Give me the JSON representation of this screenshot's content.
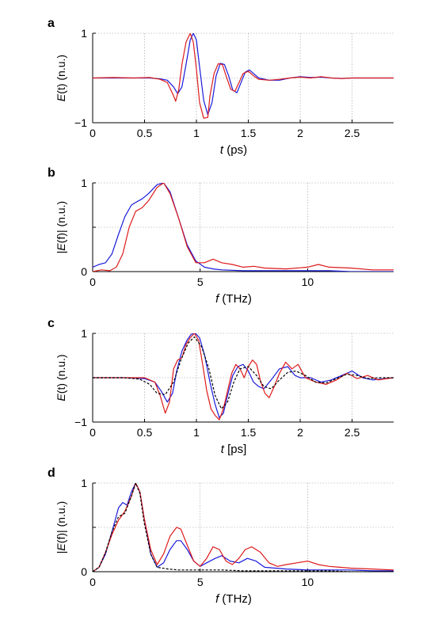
{
  "chart_data": [
    {
      "panel": "a",
      "type": "line",
      "xlabel_pre": "",
      "xlabel_var": "t",
      "xlabel_post": " (ps)",
      "ylabel_pre": "",
      "ylabel_var": "E",
      "ylabel_post": "(t) (n.u.)",
      "xlim": [
        0,
        2.9
      ],
      "ylim": [
        -1,
        1
      ],
      "xticks": [
        0,
        0.5,
        1,
        1.5,
        2,
        2.5
      ],
      "xtick_labels": [
        "0",
        "0.5",
        "1",
        "1.5",
        "2",
        "2.5"
      ],
      "yticks": [
        -1,
        0,
        1
      ],
      "ytick_labels": [
        "−1",
        "",
        "1"
      ],
      "grid": true,
      "series": [
        {
          "color": "#1a1adb",
          "dash": "",
          "x": [
            0,
            0.2,
            0.4,
            0.55,
            0.65,
            0.72,
            0.78,
            0.82,
            0.86,
            0.9,
            0.94,
            0.97,
            1.0,
            1.03,
            1.07,
            1.11,
            1.15,
            1.19,
            1.23,
            1.27,
            1.31,
            1.35,
            1.39,
            1.43,
            1.47,
            1.51,
            1.55,
            1.6,
            1.7,
            1.8,
            1.9,
            2.0,
            2.1,
            2.2,
            2.3,
            2.4,
            2.5,
            2.6,
            2.7,
            2.9
          ],
          "y": [
            0,
            0,
            0,
            0,
            -0.02,
            -0.05,
            -0.2,
            -0.35,
            -0.2,
            0.3,
            0.85,
            1.0,
            0.85,
            0.25,
            -0.5,
            -0.82,
            -0.55,
            0.05,
            0.33,
            0.3,
            0.05,
            -0.27,
            -0.33,
            -0.1,
            0.13,
            0.18,
            0.1,
            0.0,
            -0.05,
            -0.05,
            0.0,
            0.03,
            0.01,
            0.02,
            0.0,
            -0.01,
            0.0,
            0.0,
            0.0,
            0.0
          ]
        },
        {
          "color": "#dd1a1a",
          "dash": "",
          "x": [
            0,
            0.2,
            0.4,
            0.55,
            0.65,
            0.72,
            0.78,
            0.8,
            0.83,
            0.86,
            0.9,
            0.94,
            0.97,
            1.0,
            1.03,
            1.07,
            1.11,
            1.13,
            1.17,
            1.21,
            1.25,
            1.29,
            1.33,
            1.37,
            1.41,
            1.45,
            1.5,
            1.55,
            1.6,
            1.7,
            1.8,
            1.9,
            2.0,
            2.1,
            2.2,
            2.3,
            2.4,
            2.5,
            2.6,
            2.7,
            2.9
          ],
          "y": [
            0,
            0.01,
            0,
            0.01,
            -0.03,
            -0.1,
            -0.4,
            -0.52,
            -0.25,
            0.3,
            0.8,
            1.0,
            0.8,
            0.2,
            -0.55,
            -0.9,
            -0.88,
            -0.4,
            0.1,
            0.32,
            0.3,
            0.02,
            -0.25,
            -0.3,
            -0.1,
            0.1,
            0.15,
            0.05,
            -0.03,
            -0.05,
            -0.03,
            0.0,
            0.02,
            0.0,
            0.03,
            0.0,
            -0.01,
            0.0,
            0.0,
            0.0,
            0.0
          ]
        }
      ]
    },
    {
      "panel": "b",
      "type": "line",
      "xlabel_pre": "",
      "xlabel_var": "f",
      "xlabel_post": " (THz)",
      "ylabel_pre": "|",
      "ylabel_var": "E",
      "ylabel_post": "(f)| (n.u.)",
      "xlim": [
        0,
        14
      ],
      "ylim": [
        0,
        1
      ],
      "xticks": [
        0,
        5,
        10
      ],
      "xtick_labels": [
        "0",
        "5",
        "10"
      ],
      "yticks": [
        0,
        0.5,
        1
      ],
      "ytick_labels": [
        "0",
        "",
        "1"
      ],
      "grid": true,
      "series": [
        {
          "color": "#1a1adb",
          "dash": "",
          "x": [
            0,
            0.3,
            0.6,
            0.9,
            1.2,
            1.5,
            1.8,
            2.0,
            2.3,
            2.6,
            3.0,
            3.3,
            3.6,
            4.0,
            4.4,
            4.8,
            5.2,
            5.6,
            6.0,
            7,
            8,
            9,
            10,
            11,
            12,
            13,
            14
          ],
          "y": [
            0.05,
            0.08,
            0.1,
            0.2,
            0.42,
            0.62,
            0.75,
            0.78,
            0.82,
            0.88,
            0.98,
            1.0,
            0.9,
            0.6,
            0.3,
            0.12,
            0.05,
            0.03,
            0.02,
            0.01,
            0.01,
            0.01,
            0.01,
            0.01,
            0.0,
            0.0,
            0.0
          ]
        },
        {
          "color": "#dd1a1a",
          "dash": "",
          "x": [
            0,
            0.4,
            0.8,
            1.1,
            1.4,
            1.7,
            2.0,
            2.3,
            2.6,
            3.0,
            3.3,
            3.6,
            4.0,
            4.4,
            4.8,
            5.2,
            5.6,
            6.0,
            6.5,
            7,
            7.5,
            8,
            9,
            10,
            10.5,
            11,
            12,
            13,
            14
          ],
          "y": [
            0.0,
            0.02,
            0.01,
            0.05,
            0.2,
            0.5,
            0.68,
            0.72,
            0.8,
            0.95,
            1.0,
            0.88,
            0.6,
            0.28,
            0.1,
            0.1,
            0.14,
            0.1,
            0.08,
            0.05,
            0.06,
            0.04,
            0.03,
            0.05,
            0.08,
            0.05,
            0.04,
            0.02,
            0.02
          ]
        }
      ]
    },
    {
      "panel": "c",
      "type": "line",
      "xlabel_pre": "",
      "xlabel_var": "t",
      "xlabel_post": " [ps]",
      "ylabel_pre": "",
      "ylabel_var": "E",
      "ylabel_post": "(t) (n.u.)",
      "xlim": [
        0,
        2.9
      ],
      "ylim": [
        -1,
        1
      ],
      "xticks": [
        0,
        0.5,
        1,
        1.5,
        2,
        2.5
      ],
      "xtick_labels": [
        "0",
        "0.5",
        "1",
        "1.5",
        "2",
        "2.5"
      ],
      "yticks": [
        -1,
        0,
        1
      ],
      "ytick_labels": [
        "−1",
        "",
        "1"
      ],
      "grid": true,
      "series": [
        {
          "color": "#1a1adb",
          "dash": "",
          "x": [
            0,
            0.3,
            0.5,
            0.6,
            0.66,
            0.72,
            0.77,
            0.81,
            0.86,
            0.91,
            0.95,
            0.99,
            1.03,
            1.08,
            1.13,
            1.18,
            1.22,
            1.26,
            1.3,
            1.35,
            1.4,
            1.45,
            1.5,
            1.55,
            1.6,
            1.65,
            1.72,
            1.8,
            1.88,
            1.95,
            2.0,
            2.1,
            2.2,
            2.3,
            2.4,
            2.5,
            2.6,
            2.7,
            2.9
          ],
          "y": [
            0,
            0,
            -0.02,
            -0.1,
            -0.3,
            -0.55,
            -0.35,
            0.15,
            0.6,
            0.85,
            0.98,
            1.0,
            0.9,
            0.5,
            -0.1,
            -0.6,
            -0.9,
            -0.8,
            -0.4,
            0.05,
            0.25,
            0.3,
            0.15,
            -0.1,
            -0.2,
            -0.25,
            -0.05,
            0.2,
            0.25,
            0.05,
            0.0,
            0.0,
            -0.1,
            -0.05,
            0.05,
            0.15,
            0.0,
            -0.05,
            0.0
          ]
        },
        {
          "color": "#dd1a1a",
          "dash": "",
          "x": [
            0,
            0.3,
            0.5,
            0.6,
            0.65,
            0.7,
            0.74,
            0.78,
            0.82,
            0.86,
            0.9,
            0.94,
            0.98,
            1.02,
            1.06,
            1.1,
            1.14,
            1.18,
            1.22,
            1.26,
            1.3,
            1.34,
            1.38,
            1.42,
            1.46,
            1.5,
            1.54,
            1.58,
            1.62,
            1.66,
            1.7,
            1.75,
            1.8,
            1.86,
            1.92,
            1.98,
            2.05,
            2.15,
            2.25,
            2.35,
            2.45,
            2.55,
            2.65,
            2.75,
            2.9
          ],
          "y": [
            0,
            0,
            0,
            -0.1,
            -0.4,
            -0.8,
            -0.55,
            0.2,
            0.4,
            0.45,
            0.75,
            0.9,
            1.0,
            0.85,
            0.3,
            -0.3,
            -0.7,
            -0.85,
            -0.95,
            -0.7,
            -0.3,
            0.1,
            0.3,
            0.2,
            0.0,
            0.25,
            0.4,
            0.3,
            -0.1,
            -0.35,
            -0.45,
            -0.2,
            0.1,
            0.35,
            0.2,
            0.3,
            0.0,
            -0.1,
            -0.15,
            -0.05,
            0.1,
            -0.02,
            0.05,
            -0.05,
            0.0
          ]
        },
        {
          "color": "#000000",
          "dash": "3,2",
          "x": [
            0,
            0.3,
            0.45,
            0.55,
            0.62,
            0.7,
            0.78,
            0.85,
            0.92,
            0.98,
            1.05,
            1.12,
            1.18,
            1.24,
            1.3,
            1.36,
            1.42,
            1.5,
            1.58,
            1.65,
            1.72,
            1.8,
            1.88,
            1.96,
            2.05,
            2.15,
            2.25,
            2.35,
            2.45,
            2.55,
            2.65,
            2.75,
            2.9
          ],
          "y": [
            0,
            0,
            -0.03,
            -0.15,
            -0.35,
            -0.38,
            -0.1,
            0.4,
            0.78,
            0.92,
            0.7,
            0.2,
            -0.4,
            -0.7,
            -0.55,
            -0.1,
            0.2,
            0.25,
            0.05,
            -0.2,
            -0.25,
            -0.05,
            0.12,
            0.15,
            0.05,
            -0.1,
            -0.12,
            -0.02,
            0.08,
            0.05,
            -0.02,
            0.0,
            0.0
          ]
        }
      ]
    },
    {
      "panel": "d",
      "type": "line",
      "xlabel_pre": "",
      "xlabel_var": "f",
      "xlabel_post": " (THz)",
      "ylabel_pre": "|",
      "ylabel_var": "E",
      "ylabel_post": "(f)| (n.u.)",
      "xlim": [
        0,
        14
      ],
      "ylim": [
        0,
        1
      ],
      "xticks": [
        0,
        5,
        10
      ],
      "xtick_labels": [
        "0",
        "5",
        "10"
      ],
      "yticks": [
        0,
        0.5,
        1
      ],
      "ytick_labels": [
        "0",
        "",
        "1"
      ],
      "grid": true,
      "series": [
        {
          "color": "#1a1adb",
          "dash": "",
          "x": [
            0,
            0.3,
            0.6,
            0.9,
            1.2,
            1.4,
            1.6,
            1.8,
            2.0,
            2.2,
            2.4,
            2.7,
            3.0,
            3.3,
            3.6,
            3.9,
            4.1,
            4.4,
            4.7,
            5.0,
            5.3,
            5.7,
            6.0,
            6.4,
            6.8,
            7.2,
            7.6,
            8,
            9,
            10,
            11,
            12,
            13,
            14
          ],
          "y": [
            0,
            0.05,
            0.2,
            0.45,
            0.72,
            0.78,
            0.75,
            0.9,
            1.0,
            0.9,
            0.6,
            0.2,
            0.05,
            0.1,
            0.25,
            0.35,
            0.35,
            0.25,
            0.12,
            0.06,
            0.1,
            0.15,
            0.18,
            0.12,
            0.1,
            0.15,
            0.12,
            0.05,
            0.03,
            0.02,
            0.02,
            0.02,
            0.01,
            0.01
          ]
        },
        {
          "color": "#dd1a1a",
          "dash": "",
          "x": [
            0,
            0.3,
            0.6,
            0.9,
            1.2,
            1.5,
            1.8,
            2.0,
            2.2,
            2.4,
            2.7,
            3.0,
            3.3,
            3.6,
            3.9,
            4.1,
            4.4,
            4.7,
            5.0,
            5.3,
            5.6,
            5.9,
            6.2,
            6.5,
            6.8,
            7.1,
            7.4,
            7.8,
            8.2,
            8.6,
            9,
            9.5,
            10,
            10.5,
            11,
            11.5,
            12,
            13,
            14
          ],
          "y": [
            0,
            0.05,
            0.22,
            0.42,
            0.58,
            0.68,
            0.85,
            1.0,
            0.9,
            0.6,
            0.25,
            0.08,
            0.2,
            0.4,
            0.5,
            0.48,
            0.3,
            0.12,
            0.06,
            0.15,
            0.28,
            0.25,
            0.12,
            0.08,
            0.15,
            0.25,
            0.28,
            0.22,
            0.1,
            0.06,
            0.08,
            0.1,
            0.12,
            0.08,
            0.06,
            0.05,
            0.04,
            0.03,
            0.02
          ]
        },
        {
          "color": "#000000",
          "dash": "3,2",
          "x": [
            0,
            0.3,
            0.6,
            0.9,
            1.2,
            1.5,
            1.8,
            2.0,
            2.2,
            2.4,
            2.7,
            3.0,
            3.5,
            4,
            5,
            6,
            7,
            8,
            9,
            10,
            11,
            12,
            13,
            14
          ],
          "y": [
            0,
            0.05,
            0.22,
            0.45,
            0.62,
            0.66,
            0.85,
            1.0,
            0.88,
            0.55,
            0.2,
            0.05,
            0.03,
            0.02,
            0.02,
            0.02,
            0.01,
            0.01,
            0.01,
            0.01,
            0.01,
            0.0,
            0.0,
            0.0
          ]
        }
      ]
    }
  ]
}
